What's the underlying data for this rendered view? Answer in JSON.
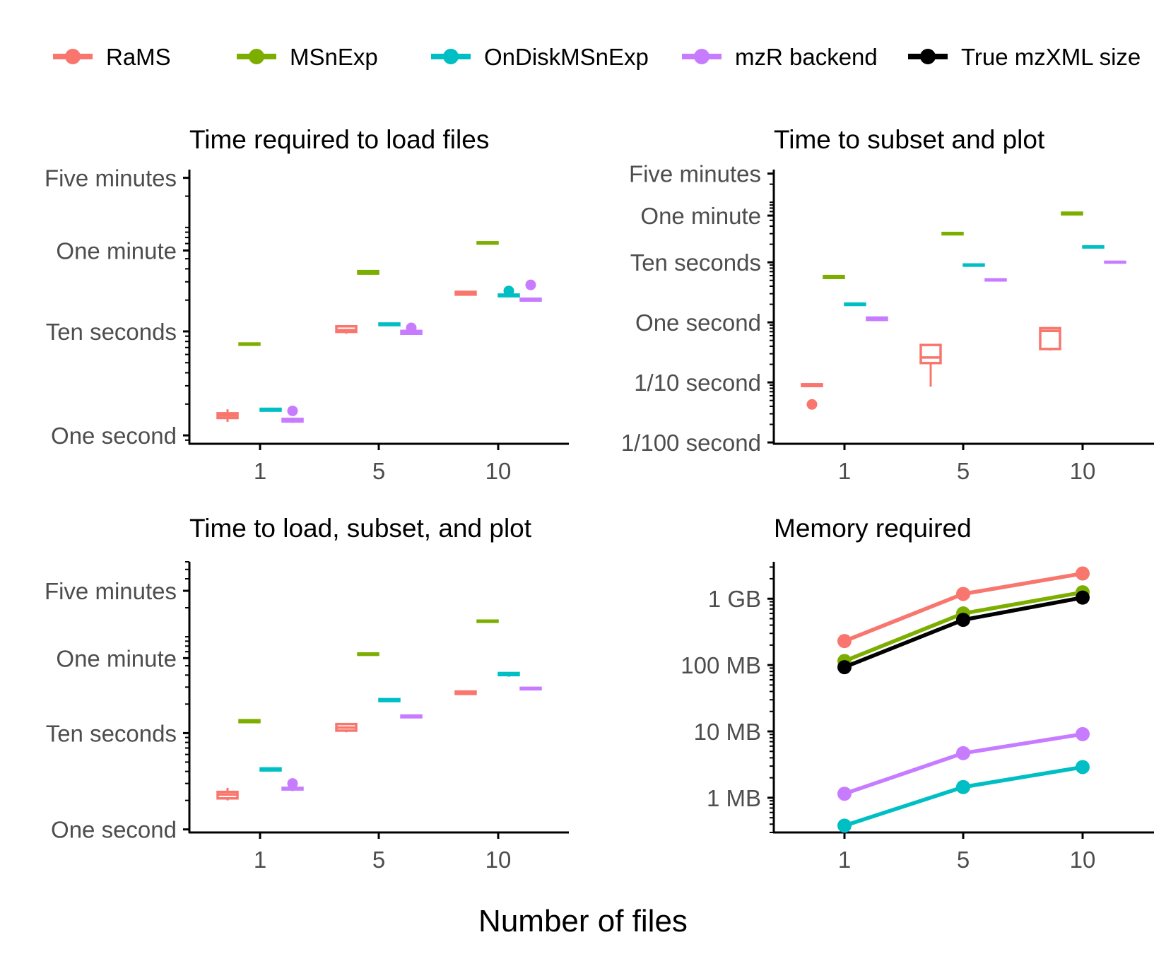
{
  "legend": {
    "entries": [
      {
        "key": "rams",
        "label": "RaMS",
        "color": "#F8766D"
      },
      {
        "key": "msnexp",
        "label": "MSnExp",
        "color": "#7CAE00"
      },
      {
        "key": "ondisk",
        "label": "OnDiskMSnExp",
        "color": "#00BFC4"
      },
      {
        "key": "mzr",
        "label": "mzR backend",
        "color": "#C77CFF"
      },
      {
        "key": "true",
        "label": "True mzXML size",
        "color": "#000000"
      }
    ]
  },
  "figure": {
    "xlabel": "Number of files"
  },
  "chart_data": [
    {
      "type": "box",
      "title": "Time required to load files",
      "scale": "log10",
      "unit": "seconds",
      "categories": [
        "1",
        "5",
        "10"
      ],
      "ylim": [
        0.83,
        360
      ],
      "yticks": [
        {
          "value": 1,
          "label": "One second"
        },
        {
          "value": 10,
          "label": "Ten seconds"
        },
        {
          "value": 60,
          "label": "One minute"
        },
        {
          "value": 300,
          "label": "Five minutes"
        }
      ],
      "series": [
        {
          "key": "rams",
          "name": "RaMS",
          "boxes": [
            {
              "min": 1.35,
              "q1": 1.47,
              "median": 1.55,
              "q3": 1.63,
              "max": 1.78
            },
            {
              "min": 9.5,
              "q1": 9.9,
              "median": 10.3,
              "q3": 11.2,
              "max": 11.3
            },
            {
              "min": 22.4,
              "q1": 22.6,
              "median": 23.3,
              "q3": 24.0,
              "max": 24.3
            }
          ]
        },
        {
          "key": "msnexp",
          "name": "MSnExp",
          "boxes": [
            {
              "min": 7.4,
              "q1": 7.45,
              "median": 7.55,
              "q3": 7.65,
              "max": 7.7
            },
            {
              "min": 35,
              "q1": 36,
              "median": 37,
              "q3": 38,
              "max": 39
            },
            {
              "min": 69,
              "q1": 70,
              "median": 71,
              "q3": 72,
              "max": 73
            }
          ]
        },
        {
          "key": "ondisk",
          "name": "OnDiskMSnExp",
          "boxes": [
            {
              "min": 1.7,
              "q1": 1.73,
              "median": 1.76,
              "q3": 1.8,
              "max": 1.82
            },
            {
              "min": 11.3,
              "q1": 11.5,
              "median": 11.7,
              "q3": 11.9,
              "max": 12.1
            },
            {
              "min": 21.5,
              "q1": 21.8,
              "median": 22.2,
              "q3": 22.6,
              "max": 23.0,
              "outliers": [
                24.5
              ]
            }
          ]
        },
        {
          "key": "mzr",
          "name": "mzR backend",
          "boxes": [
            {
              "min": 1.32,
              "q1": 1.36,
              "median": 1.4,
              "q3": 1.44,
              "max": 1.48,
              "outliers": [
                1.72
              ]
            },
            {
              "min": 9.3,
              "q1": 9.5,
              "median": 9.8,
              "q3": 10.1,
              "max": 10.5,
              "outliers": [
                10.8
              ]
            },
            {
              "min": 19.5,
              "q1": 19.8,
              "median": 20.2,
              "q3": 20.6,
              "max": 21.0,
              "outliers": [
                28.0
              ]
            }
          ]
        }
      ]
    },
    {
      "type": "box",
      "title": "Time to subset and plot",
      "scale": "log10",
      "unit": "seconds",
      "categories": [
        "1",
        "5",
        "10"
      ],
      "ylim": [
        0.0095,
        350
      ],
      "yticks": [
        {
          "value": 0.01,
          "label": "1/100 second"
        },
        {
          "value": 0.1,
          "label": "1/10 second"
        },
        {
          "value": 1,
          "label": "One second"
        },
        {
          "value": 10,
          "label": "Ten seconds"
        },
        {
          "value": 60,
          "label": "One minute"
        },
        {
          "value": 300,
          "label": "Five minutes"
        }
      ],
      "series": [
        {
          "key": "rams",
          "name": "RaMS",
          "boxes": [
            {
              "min": 0.085,
              "q1": 0.087,
              "median": 0.09,
              "q3": 0.093,
              "max": 0.095,
              "outliers": [
                0.043
              ]
            },
            {
              "min": 0.085,
              "q1": 0.21,
              "median": 0.26,
              "q3": 0.42,
              "max": 0.43
            },
            {
              "min": 0.34,
              "q1": 0.36,
              "median": 0.72,
              "q3": 0.8,
              "max": 0.82
            }
          ]
        },
        {
          "key": "msnexp",
          "name": "MSnExp",
          "boxes": [
            {
              "min": 5.3,
              "q1": 5.5,
              "median": 5.7,
              "q3": 5.9,
              "max": 6.1
            },
            {
              "min": 28.5,
              "q1": 29.3,
              "median": 30,
              "q3": 30.8,
              "max": 31.5
            },
            {
              "min": 61,
              "q1": 63,
              "median": 65,
              "q3": 67,
              "max": 69
            }
          ]
        },
        {
          "key": "ondisk",
          "name": "OnDiskMSnExp",
          "boxes": [
            {
              "min": 1.9,
              "q1": 1.95,
              "median": 2.0,
              "q3": 2.05,
              "max": 2.1
            },
            {
              "min": 8.6,
              "q1": 8.8,
              "median": 9.0,
              "q3": 9.2,
              "max": 9.4
            },
            {
              "min": 17.4,
              "q1": 17.7,
              "median": 18.0,
              "q3": 18.4,
              "max": 18.7
            }
          ]
        },
        {
          "key": "mzr",
          "name": "mzR backend",
          "boxes": [
            {
              "min": 1.05,
              "q1": 1.1,
              "median": 1.15,
              "q3": 1.2,
              "max": 1.25
            },
            {
              "min": 4.9,
              "q1": 5.0,
              "median": 5.1,
              "q3": 5.2,
              "max": 5.3
            },
            {
              "min": 9.7,
              "q1": 9.9,
              "median": 10.0,
              "q3": 10.2,
              "max": 10.4
            }
          ]
        }
      ]
    },
    {
      "type": "box",
      "title": "Time to load, subset, and plot",
      "scale": "log10",
      "unit": "seconds",
      "categories": [
        "1",
        "5",
        "10"
      ],
      "ylim": [
        0.93,
        600
      ],
      "yticks": [
        {
          "value": 1,
          "label": "One second"
        },
        {
          "value": 10,
          "label": "Ten seconds"
        },
        {
          "value": 60,
          "label": "One minute"
        },
        {
          "value": 300,
          "label": "Five minutes"
        }
      ],
      "series": [
        {
          "key": "rams",
          "name": "RaMS",
          "boxes": [
            {
              "min": 2.0,
              "q1": 2.1,
              "median": 2.3,
              "q3": 2.45,
              "max": 2.7
            },
            {
              "min": 10.2,
              "q1": 10.6,
              "median": 11.4,
              "q3": 12.4,
              "max": 12.6
            },
            {
              "min": 25.0,
              "q1": 25.5,
              "median": 26.2,
              "q3": 27.0,
              "max": 27.5
            }
          ]
        },
        {
          "key": "msnexp",
          "name": "MSnExp",
          "boxes": [
            {
              "min": 12.8,
              "q1": 13.0,
              "median": 13.3,
              "q3": 13.6,
              "max": 13.8
            },
            {
              "min": 64,
              "q1": 65,
              "median": 66,
              "q3": 67,
              "max": 68
            },
            {
              "min": 141,
              "q1": 143,
              "median": 145,
              "q3": 147,
              "max": 149
            }
          ]
        },
        {
          "key": "ondisk",
          "name": "OnDiskMSnExp",
          "boxes": [
            {
              "min": 4.0,
              "q1": 4.1,
              "median": 4.2,
              "q3": 4.3,
              "max": 4.4
            },
            {
              "min": 21.0,
              "q1": 21.5,
              "median": 22.0,
              "q3": 22.5,
              "max": 23.0
            },
            {
              "min": 38.5,
              "q1": 40.0,
              "median": 41.0,
              "q3": 42.0,
              "max": 43.0
            }
          ]
        },
        {
          "key": "mzr",
          "name": "mzR backend",
          "boxes": [
            {
              "min": 2.5,
              "q1": 2.6,
              "median": 2.65,
              "q3": 2.7,
              "max": 2.8,
              "outliers": [
                3.0
              ]
            },
            {
              "min": 14.3,
              "q1": 14.6,
              "median": 14.9,
              "q3": 15.2,
              "max": 15.4
            },
            {
              "min": 28.0,
              "q1": 28.5,
              "median": 29.0,
              "q3": 29.5,
              "max": 30.0
            }
          ]
        }
      ]
    },
    {
      "type": "line",
      "title": "Memory required",
      "scale": "log10",
      "unit": "MB",
      "categories": [
        "1",
        "5",
        "10"
      ],
      "ylim": [
        0.3,
        3600
      ],
      "yticks": [
        {
          "value": 1,
          "label": "1 MB"
        },
        {
          "value": 10,
          "label": "10 MB"
        },
        {
          "value": 100,
          "label": "100 MB"
        },
        {
          "value": 1000,
          "label": "1 GB"
        }
      ],
      "series": [
        {
          "key": "rams",
          "name": "RaMS",
          "values": [
            230,
            1180,
            2400
          ]
        },
        {
          "key": "msnexp",
          "name": "MSnExp",
          "values": [
            115,
            600,
            1250
          ]
        },
        {
          "key": "true",
          "name": "True mzXML size",
          "values": [
            93,
            480,
            1040
          ]
        },
        {
          "key": "mzr",
          "name": "mzR backend",
          "values": [
            1.15,
            4.7,
            9.1
          ]
        },
        {
          "key": "ondisk",
          "name": "OnDiskMSnExp",
          "values": [
            0.38,
            1.45,
            2.9
          ]
        }
      ]
    }
  ]
}
